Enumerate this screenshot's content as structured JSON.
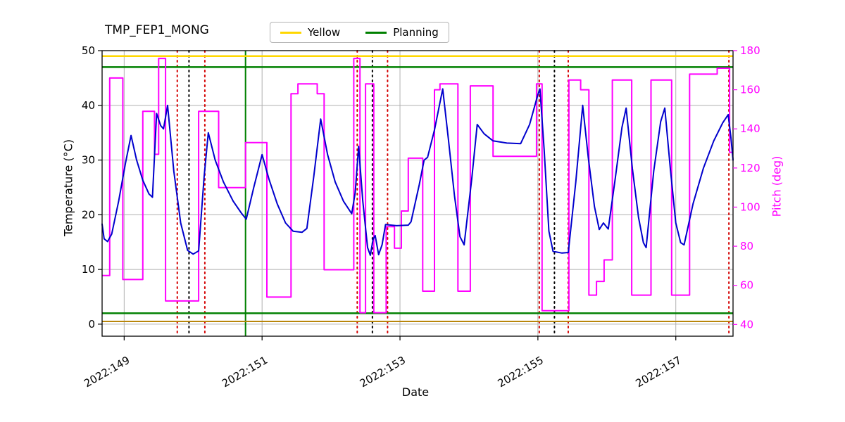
{
  "title": "TMP_FEP1_MONG",
  "legend": {
    "items": [
      {
        "label": "Yellow",
        "color": "#ffd700"
      },
      {
        "label": "Planning",
        "color": "#008000"
      }
    ]
  },
  "chart_data": {
    "type": "line",
    "title": "TMP_FEP1_MONG",
    "xlabel": "Date",
    "ylabel_left": "Temperature (°C)",
    "ylabel_right": "Pitch (deg)",
    "grid": true,
    "xlim": [
      148.68,
      157.83
    ],
    "ylim_left": [
      -2.2,
      50
    ],
    "ylim_right": [
      34,
      180
    ],
    "x_ticks": [
      {
        "value": 149,
        "label": "2022:149"
      },
      {
        "value": 151,
        "label": "2022:151"
      },
      {
        "value": 153,
        "label": "2022:153"
      },
      {
        "value": 155,
        "label": "2022:155"
      },
      {
        "value": 157,
        "label": "2022:157"
      }
    ],
    "y_ticks_left": [
      0,
      10,
      20,
      30,
      40,
      50
    ],
    "y_ticks_right": [
      40,
      60,
      80,
      100,
      120,
      140,
      160,
      180
    ],
    "colors": {
      "temperature": "#0000cd",
      "pitch": "#ff00ff",
      "yellow_limit": "#ffd700",
      "planning": "#008000",
      "dark_yellow_limit": "#b8860b",
      "red_marker": "#d40000",
      "black_marker": "#000000",
      "grid": "#b0b0b0"
    },
    "series": [
      {
        "name": "temperature",
        "axis": "left",
        "type": "line",
        "color": "#0000cd",
        "x": [
          148.68,
          148.71,
          148.76,
          148.82,
          148.92,
          149.02,
          149.1,
          149.18,
          149.27,
          149.36,
          149.41,
          149.47,
          149.53,
          149.57,
          149.63,
          149.72,
          149.82,
          149.92,
          150.0,
          150.08,
          150.16,
          150.22,
          150.32,
          150.44,
          150.58,
          150.7,
          150.77,
          150.88,
          151.0,
          151.1,
          151.22,
          151.34,
          151.45,
          151.58,
          151.65,
          151.75,
          151.85,
          151.95,
          152.06,
          152.18,
          152.3,
          152.35,
          152.4,
          152.46,
          152.53,
          152.57,
          152.61,
          152.64,
          152.69,
          152.74,
          152.79,
          152.95,
          153.12,
          153.16,
          153.28,
          153.35,
          153.4,
          153.5,
          153.62,
          153.7,
          153.79,
          153.87,
          153.93,
          154.04,
          154.12,
          154.22,
          154.35,
          154.55,
          154.75,
          154.88,
          155.0,
          155.03,
          155.09,
          155.16,
          155.22,
          155.35,
          155.44,
          155.55,
          155.65,
          155.73,
          155.82,
          155.89,
          155.95,
          156.02,
          156.12,
          156.22,
          156.28,
          156.37,
          156.46,
          156.53,
          156.57,
          156.68,
          156.78,
          156.84,
          156.92,
          157.0,
          157.07,
          157.12,
          157.25,
          157.4,
          157.55,
          157.68,
          157.76,
          157.8,
          157.83
        ],
        "y": [
          18.3,
          15.6,
          15.1,
          16.5,
          22.5,
          29.5,
          34.5,
          30.0,
          26.3,
          23.8,
          23.2,
          38.5,
          36.3,
          35.7,
          40.0,
          28.0,
          18.5,
          13.5,
          12.8,
          13.4,
          27.0,
          35.0,
          30.0,
          26.0,
          22.5,
          20.3,
          19.2,
          25.0,
          31.0,
          26.5,
          22.0,
          18.5,
          17.0,
          16.8,
          17.5,
          27.0,
          37.5,
          31.0,
          26.0,
          22.5,
          20.2,
          24.0,
          32.5,
          22.5,
          14.0,
          12.6,
          15.5,
          16.2,
          12.7,
          14.5,
          18.2,
          18.0,
          18.1,
          18.7,
          25.5,
          30.0,
          30.5,
          35.5,
          43.0,
          34.0,
          23.5,
          16.0,
          14.5,
          26.5,
          36.5,
          34.8,
          33.5,
          33.1,
          33.0,
          36.5,
          42.0,
          43.0,
          32.0,
          17.0,
          13.3,
          13.0,
          13.1,
          26.0,
          40.0,
          30.5,
          21.5,
          17.3,
          18.5,
          17.4,
          26.5,
          36.0,
          39.5,
          28.5,
          19.5,
          14.9,
          14.0,
          28.0,
          37.0,
          39.5,
          28.5,
          18.5,
          14.9,
          14.5,
          22.0,
          28.5,
          33.5,
          36.8,
          38.3,
          34.0,
          30.0
        ]
      },
      {
        "name": "pitch",
        "axis": "right",
        "type": "step",
        "color": "#ff00ff",
        "x": [
          148.68,
          148.79,
          148.98,
          149.27,
          149.44,
          149.5,
          149.6,
          150.08,
          150.37,
          150.76,
          151.07,
          151.42,
          151.52,
          151.8,
          151.9,
          152.33,
          152.42,
          152.5,
          152.62,
          152.8,
          152.92,
          153.02,
          153.12,
          153.33,
          153.5,
          153.58,
          153.84,
          154.02,
          154.35,
          154.98,
          155.06,
          155.45,
          155.62,
          155.74,
          155.85,
          155.96,
          156.08,
          156.36,
          156.64,
          156.94,
          157.2,
          157.6,
          157.78
        ],
        "y": [
          65,
          166,
          63,
          149,
          127,
          176,
          52,
          149,
          110,
          133,
          54,
          158,
          163,
          158,
          68,
          176,
          46,
          163,
          46,
          90,
          79,
          98,
          125,
          57,
          160,
          163,
          57,
          162,
          126,
          163,
          47,
          165,
          160,
          55,
          62,
          73,
          165,
          55,
          165,
          55,
          168,
          171,
          128
        ]
      }
    ],
    "hlines": [
      {
        "name": "yellow-limit",
        "y": 49,
        "axis": "left",
        "color": "#ffd700",
        "width": 2.5,
        "label": "Yellow"
      },
      {
        "name": "planning-upper",
        "y": 47,
        "axis": "left",
        "color": "#008000",
        "width": 2.5,
        "label": "Planning"
      },
      {
        "name": "planning-lower",
        "y": 2,
        "axis": "left",
        "color": "#008000",
        "width": 2.5,
        "label": "Planning"
      },
      {
        "name": "dark-yellow-limit",
        "y": 0.5,
        "axis": "left",
        "color": "#b8860b",
        "width": 2
      }
    ],
    "vlines": [
      {
        "name": "planning-event",
        "x": 150.76,
        "color": "#008000",
        "style": "solid",
        "width": 2
      },
      {
        "name": "red-event",
        "x": 149.77,
        "color": "#d40000",
        "style": "dotted",
        "width": 2
      },
      {
        "name": "black-event",
        "x": 149.94,
        "color": "#000000",
        "style": "dotted",
        "width": 2
      },
      {
        "name": "red-event",
        "x": 150.17,
        "color": "#d40000",
        "style": "dotted",
        "width": 2
      },
      {
        "name": "red-event",
        "x": 152.38,
        "color": "#d40000",
        "style": "dotted",
        "width": 2
      },
      {
        "name": "black-event",
        "x": 152.6,
        "color": "#000000",
        "style": "dotted",
        "width": 2
      },
      {
        "name": "red-event",
        "x": 152.82,
        "color": "#d40000",
        "style": "dotted",
        "width": 2
      },
      {
        "name": "red-event",
        "x": 155.02,
        "color": "#d40000",
        "style": "dotted",
        "width": 2
      },
      {
        "name": "black-event",
        "x": 155.24,
        "color": "#000000",
        "style": "dotted",
        "width": 2
      },
      {
        "name": "red-event",
        "x": 155.44,
        "color": "#d40000",
        "style": "dotted",
        "width": 2
      },
      {
        "name": "red-event",
        "x": 157.77,
        "color": "#d40000",
        "style": "dotted",
        "width": 2
      }
    ]
  }
}
